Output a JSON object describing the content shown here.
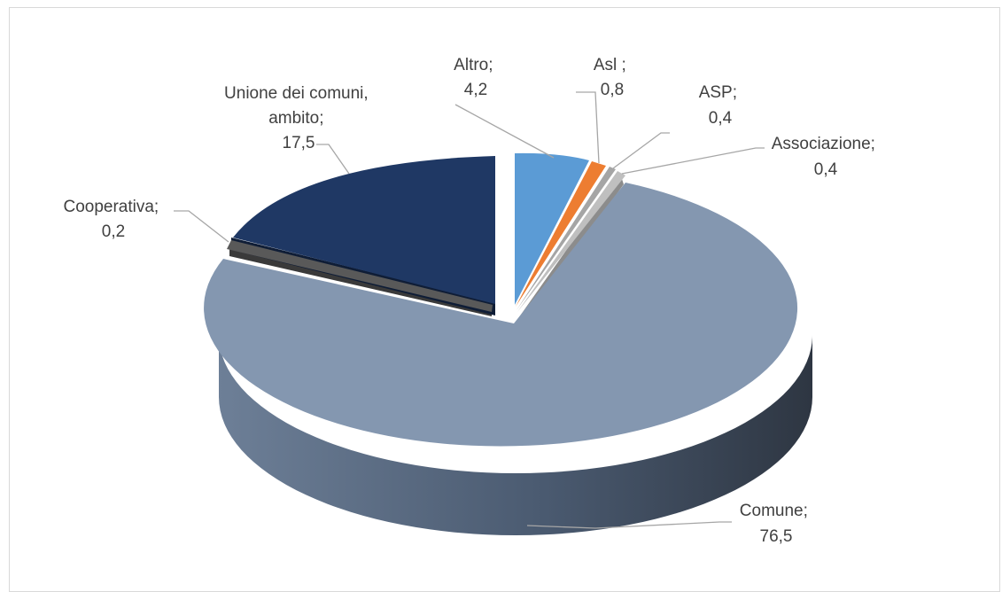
{
  "chart_data": {
    "type": "pie",
    "style": "3d-exploded",
    "legend": "none",
    "slices": [
      {
        "name": "Altro",
        "value": 4.2,
        "label_line1": "Altro;",
        "label_line2": "4,2",
        "color": "#5b9bd5"
      },
      {
        "name": "Asl",
        "value": 0.8,
        "label_line1": "Asl ;",
        "label_line2": "0,8",
        "color": "#ed7d31"
      },
      {
        "name": "ASP",
        "value": 0.4,
        "label_line1": "ASP;",
        "label_line2": "0,4",
        "color": "#a5a5a5"
      },
      {
        "name": "Associazione",
        "value": 0.4,
        "label_line1": "Associazione;",
        "label_line2": "0,4",
        "color": "#bfbfbf"
      },
      {
        "name": "Comune",
        "value": 76.5,
        "label_line1": "Comune;",
        "label_line2": "76,5",
        "color": "#8497b0"
      },
      {
        "name": "Cooperativa",
        "value": 0.2,
        "label_line1": "Cooperativa;",
        "label_line2": "0,2",
        "color": "#595959"
      },
      {
        "name": "Unione dei comuni, ambito",
        "value": 17.5,
        "label_line1": "Unione dei comuni,",
        "label_line1b": "ambito;",
        "label_line2": "17,5",
        "color": "#1f3864"
      }
    ]
  }
}
